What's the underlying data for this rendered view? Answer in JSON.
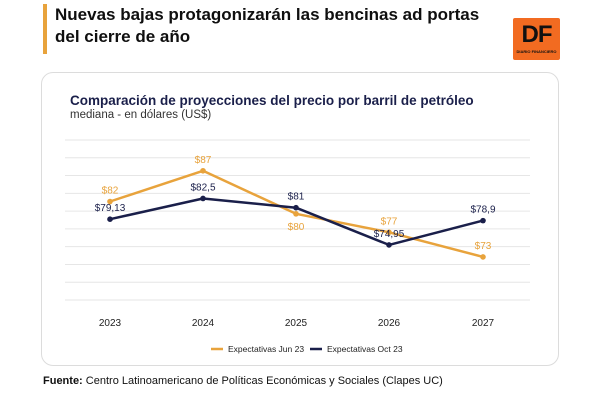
{
  "headline": "Nuevas bajas protagonizarán las bencinas ad portas del cierre de año",
  "logo": {
    "mark": "DF",
    "tagline": "DIARIO FINANCIERO"
  },
  "footer": {
    "label": "Fuente:",
    "text": " Centro Latinoamericano de Políticas Económicas y Sociales (Clapes UC)"
  },
  "colors": {
    "accent": "#e8a33c",
    "logo": "#f26b21",
    "navy": "#1a1f4a"
  },
  "chart_data": {
    "type": "line",
    "title": "Comparación de proyecciones del precio por barril de petróleo",
    "subtitle": "mediana - en dólares (US$)",
    "categories": [
      "2023",
      "2024",
      "2025",
      "2026",
      "2027"
    ],
    "ylim": [
      66,
      92
    ],
    "grid": true,
    "legend_position": "bottom-center",
    "series": [
      {
        "name": "Expectativas Jun 23",
        "color": "#e8a33c",
        "values": [
          82,
          87,
          80,
          77,
          73
        ],
        "labels": [
          "$82",
          "$87",
          "$80",
          "$77",
          "$73"
        ],
        "label_side": [
          "above",
          "above",
          "below",
          "above",
          "above"
        ]
      },
      {
        "name": "Expectativas Oct 23",
        "color": "#1a1f4a",
        "values": [
          79.13,
          82.5,
          81,
          74.95,
          78.9
        ],
        "labels": [
          "$79,13",
          "$82,5",
          "$81",
          "$74,95",
          "$78,9"
        ],
        "label_side": [
          "above",
          "above",
          "above",
          "above",
          "above"
        ]
      }
    ]
  }
}
